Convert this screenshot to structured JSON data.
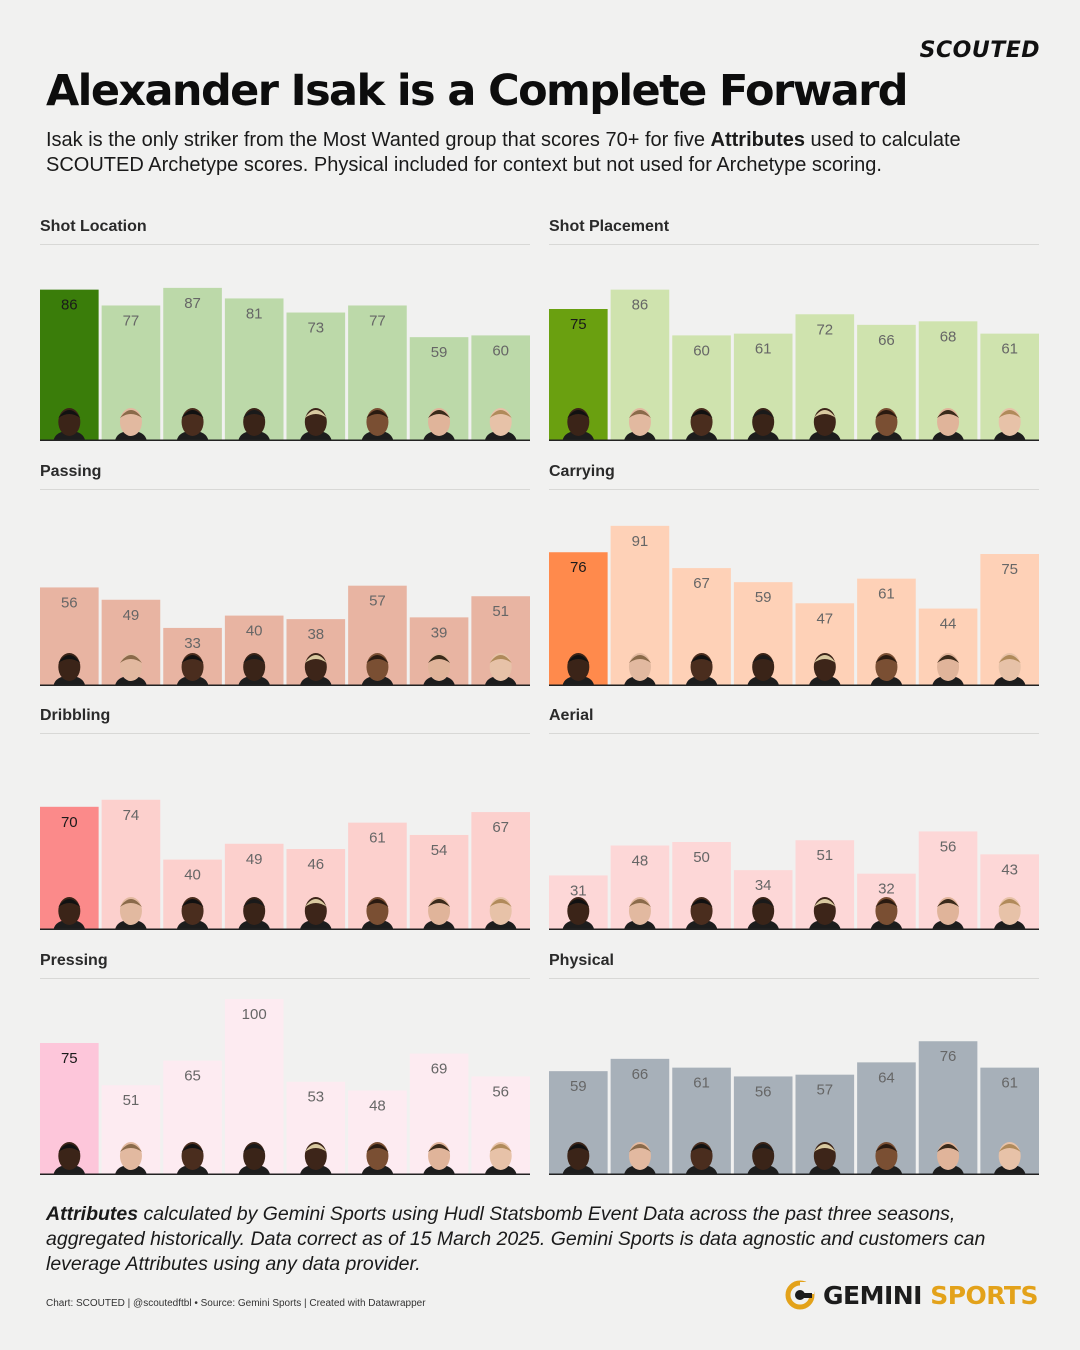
{
  "brand": "SCOUTED",
  "title": "Alexander Isak is a Complete Forward",
  "subtitle": {
    "part1": "Isak is the only striker from the Most Wanted group that scores 70+ for five ",
    "bold": "Attributes",
    "part2": " used to calculate SCOUTED Archetype scores. Physical included for context but not used for Archetype scoring."
  },
  "footnote": {
    "bold": "Attributes",
    "text": " calculated by Gemini Sports using Hudl Statsbomb Event Data across the past three seasons, aggregated historically. Data correct as of 15 March 2025. Gemini Sports is data agnostic and customers can leverage Attributes using any data provider."
  },
  "credit": "Chart: SCOUTED | @scoutedftbl • Source: Gemini Sports | Created with Datawrapper",
  "logo": {
    "word1": "GEMINI",
    "word2": "SPORTS",
    "icon": "gemini-g-icon"
  },
  "players_icon": "player-headshot-icon",
  "chart_data": [
    {
      "type": "bar",
      "title": "Shot Location",
      "values": [
        86,
        77,
        87,
        81,
        73,
        77,
        59,
        60
      ],
      "highlight_index": 0,
      "ylim": [
        0,
        100
      ],
      "highlight_color": "#3a7d0a",
      "base_color": "#bcd9a9"
    },
    {
      "type": "bar",
      "title": "Shot Placement",
      "values": [
        75,
        86,
        60,
        61,
        72,
        66,
        68,
        61
      ],
      "highlight_index": 0,
      "ylim": [
        0,
        100
      ],
      "highlight_color": "#6aa010",
      "base_color": "#cfe3ae"
    },
    {
      "type": "bar",
      "title": "Passing",
      "values": [
        56,
        49,
        33,
        40,
        38,
        57,
        39,
        51
      ],
      "highlight_index": null,
      "ylim": [
        0,
        100
      ],
      "highlight_color": "#e8b4a2",
      "base_color": "#e8b4a2"
    },
    {
      "type": "bar",
      "title": "Carrying",
      "values": [
        76,
        91,
        67,
        59,
        47,
        61,
        44,
        75
      ],
      "highlight_index": 0,
      "ylim": [
        0,
        100
      ],
      "highlight_color": "#ff8a4c",
      "base_color": "#fed1b7"
    },
    {
      "type": "bar",
      "title": "Dribbling",
      "values": [
        70,
        74,
        40,
        49,
        46,
        61,
        54,
        67
      ],
      "highlight_index": 0,
      "ylim": [
        0,
        100
      ],
      "highlight_color": "#fb8a8a",
      "base_color": "#fcd0cd"
    },
    {
      "type": "bar",
      "title": "Aerial",
      "values": [
        31,
        48,
        50,
        34,
        51,
        32,
        56,
        43
      ],
      "highlight_index": null,
      "ylim": [
        0,
        100
      ],
      "highlight_color": "#fdd7d7",
      "base_color": "#fdd7d7"
    },
    {
      "type": "bar",
      "title": "Pressing",
      "values": [
        75,
        51,
        65,
        100,
        53,
        48,
        69,
        56
      ],
      "highlight_index": 0,
      "ylim": [
        0,
        100
      ],
      "highlight_color": "#fdc6da",
      "base_color": "#fdebf1"
    },
    {
      "type": "bar",
      "title": "Physical",
      "values": [
        59,
        66,
        61,
        56,
        57,
        64,
        76,
        61
      ],
      "highlight_index": null,
      "ylim": [
        0,
        100
      ],
      "highlight_color": "#a7b0b9",
      "base_color": "#a7b0b9"
    }
  ]
}
